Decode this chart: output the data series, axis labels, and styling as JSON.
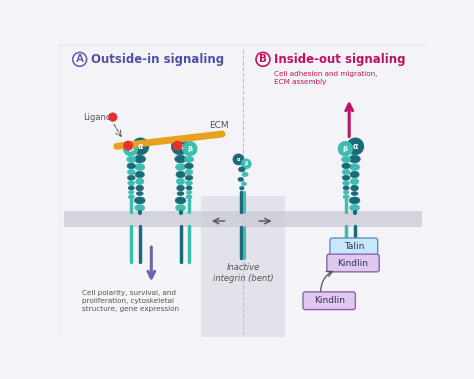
{
  "title_A": "Outside-in signaling",
  "title_B": "Inside-out signaling",
  "label_A": "A",
  "label_B": "B",
  "subtitle_B": "Cell adhesion and migration,\nECM assembly",
  "label_ligand": "Ligand",
  "label_ecm": "ECM",
  "label_inactive": "Inactive\nintegrin (bent)",
  "label_talin": "Talin",
  "label_kindlin1": "Kindlin",
  "label_kindlin2": "Kindlin",
  "label_downstream_A": "Cell polarity, survival, and\nproliferation, cytoskeletal\nstructure, gene expression",
  "bg_color": "#f4f4f8",
  "center_bg_color": "#e8e8ee",
  "membrane_color": "#d0d0dc",
  "integrin_dark": "#1a6b7a",
  "integrin_teal": "#3dbdb0",
  "ecm_color": "#e8a020",
  "ligand_color": "#e83030",
  "arrow_purple": "#7060b0",
  "arrow_red": "#c01060",
  "text_purple": "#5050a0",
  "text_pink": "#c01060",
  "talin_fill": "#c8e8f8",
  "talin_edge": "#6090c0",
  "kindlin_fill": "#e0c8f0",
  "kindlin_edge": "#9060b0",
  "divider_color": "#c0c0d0",
  "fig_width": 4.74,
  "fig_height": 3.79,
  "dpi": 100
}
